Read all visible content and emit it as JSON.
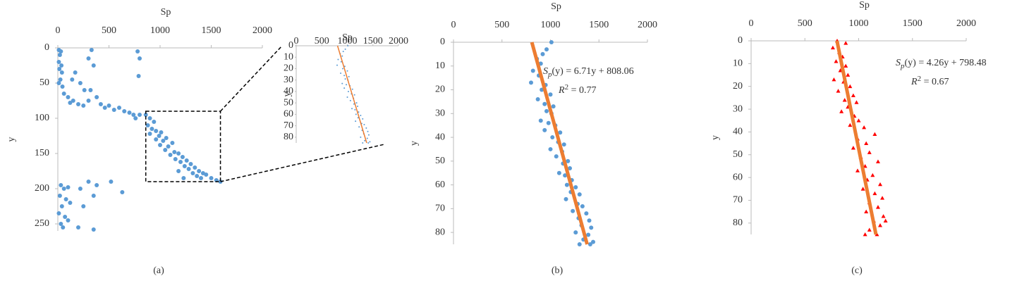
{
  "chart_data": [
    {
      "type": "scatter",
      "xlabel": "Sp",
      "ylabel": "y",
      "caption": "(a)",
      "xlim": [
        0,
        2000
      ],
      "xticks": [
        0,
        500,
        1000,
        1500,
        2000
      ],
      "ylim": [
        0,
        260
      ],
      "yticks": [
        0,
        50,
        100,
        150,
        200,
        250
      ],
      "highlight": {
        "x": [
          860,
          1590
        ],
        "y": [
          90,
          190
        ]
      },
      "series": [
        {
          "color": "#5b9bd5",
          "marker": "circle",
          "x": [
            10,
            30,
            20,
            10,
            35,
            15,
            40,
            25,
            10,
            45,
            60,
            100,
            150,
            120,
            200,
            250,
            330,
            300,
            350,
            170,
            140,
            220,
            260,
            320,
            380,
            300,
            420,
            500,
            460,
            550,
            600,
            650,
            700,
            740,
            760,
            800,
            780,
            800,
            790,
            860,
            900,
            880,
            940,
            920,
            960,
            900,
            990,
            1010,
            960,
            1030,
            1060,
            1000,
            1080,
            1120,
            1050,
            1140,
            1100,
            1180,
            1150,
            1220,
            1200,
            1260,
            1240,
            1300,
            1280,
            1340,
            1320,
            1380,
            1360,
            1420,
            1400,
            1450,
            1500,
            1550,
            1590,
            1230,
            1180,
            30,
            60,
            100,
            20,
            80,
            40,
            120,
            10,
            70,
            30,
            100,
            50,
            200,
            350,
            250,
            350,
            520,
            630,
            380,
            220,
            300
          ],
          "values": [
            3,
            5,
            10,
            20,
            25,
            30,
            35,
            45,
            50,
            55,
            65,
            70,
            75,
            78,
            80,
            82,
            3,
            15,
            25,
            35,
            45,
            50,
            60,
            60,
            70,
            75,
            80,
            82,
            85,
            88,
            85,
            90,
            92,
            95,
            100,
            95,
            5,
            15,
            40,
            95,
            100,
            110,
            105,
            115,
            118,
            122,
            125,
            120,
            130,
            132,
            128,
            138,
            140,
            135,
            145,
            148,
            152,
            150,
            158,
            155,
            162,
            160,
            168,
            165,
            172,
            170,
            178,
            175,
            182,
            178,
            185,
            180,
            185,
            188,
            190,
            185,
            175,
            195,
            200,
            198,
            210,
            215,
            225,
            220,
            235,
            240,
            250,
            245,
            255,
            255,
            258,
            225,
            210,
            190,
            205,
            195,
            200,
            190
          ]
        }
      ]
    },
    {
      "type": "scatter",
      "xlabel": "Sp",
      "ylabel": "y",
      "caption": "(b)",
      "xlim": [
        0,
        2000
      ],
      "xticks": [
        0,
        500,
        1000,
        1500,
        2000
      ],
      "ylim": [
        0,
        85
      ],
      "yticks": [
        0,
        10,
        20,
        30,
        40,
        50,
        60,
        70,
        80
      ],
      "fit": {
        "slope": 6.71,
        "intercept": 808.06,
        "color": "#ed7d31"
      },
      "equation": [
        "S",
        "p",
        "(y) = 6.71y + 808.06"
      ],
      "r_squared": [
        "R",
        "2",
        " = 0.77"
      ],
      "series": [
        {
          "color": "#5b9bd5",
          "marker": "circle",
          "x": [
            1010,
            960,
            920,
            860,
            900,
            820,
            880,
            800,
            950,
            910,
            1000,
            870,
            940,
            1030,
            960,
            1010,
            900,
            980,
            1050,
            940,
            1100,
            1020,
            1080,
            1140,
            1000,
            1120,
            1060,
            1180,
            1130,
            1200,
            1090,
            1150,
            1220,
            1170,
            1260,
            1210,
            1300,
            1160,
            1280,
            1330,
            1230,
            1370,
            1290,
            1400,
            1320,
            1420,
            1260,
            1390,
            1340,
            1440,
            1300,
            1410
          ],
          "values": [
            0,
            3,
            5,
            7,
            9,
            12,
            14,
            17,
            18,
            20,
            22,
            24,
            26,
            27,
            29,
            30,
            33,
            34,
            35,
            37,
            38,
            40,
            42,
            43,
            45,
            46,
            48,
            50,
            51,
            53,
            55,
            56,
            58,
            60,
            61,
            63,
            64,
            66,
            68,
            69,
            71,
            72,
            74,
            75,
            77,
            78,
            80,
            81,
            83,
            84,
            85,
            85
          ]
        }
      ]
    },
    {
      "type": "scatter",
      "xlabel": "Sp",
      "ylabel": "y",
      "caption": "(c)",
      "xlim": [
        0,
        2000
      ],
      "xticks": [
        0,
        500,
        1000,
        1500,
        2000
      ],
      "ylim": [
        0,
        85
      ],
      "yticks": [
        0,
        10,
        20,
        30,
        40,
        50,
        60,
        70,
        80
      ],
      "fit": {
        "slope": 4.26,
        "intercept": 798.48,
        "color": "#ed7d31"
      },
      "equation": [
        "S",
        "p",
        "(y) = 4.26y + 798.48"
      ],
      "r_squared": [
        "R",
        "2",
        " = 0.67"
      ],
      "series": [
        {
          "color": "#ff0000",
          "marker": "triangle",
          "x": [
            800,
            880,
            760,
            820,
            850,
            790,
            880,
            830,
            900,
            770,
            860,
            920,
            810,
            950,
            870,
            980,
            900,
            840,
            960,
            1000,
            920,
            1050,
            1150,
            990,
            1070,
            950,
            1100,
            1020,
            1180,
            1060,
            990,
            1130,
            1080,
            1200,
            1040,
            1150,
            1220,
            1100,
            1180,
            1070,
            1230,
            1140,
            1200,
            1100,
            1250,
            1060,
            1170
          ],
          "values": [
            0,
            1,
            3,
            5,
            7,
            9,
            11,
            13,
            15,
            17,
            18,
            20,
            22,
            24,
            26,
            27,
            29,
            31,
            33,
            35,
            37,
            38,
            41,
            43,
            45,
            47,
            49,
            51,
            53,
            55,
            57,
            59,
            61,
            63,
            65,
            67,
            69,
            71,
            73,
            75,
            77,
            79,
            81,
            83,
            79,
            85,
            85
          ]
        }
      ]
    }
  ]
}
